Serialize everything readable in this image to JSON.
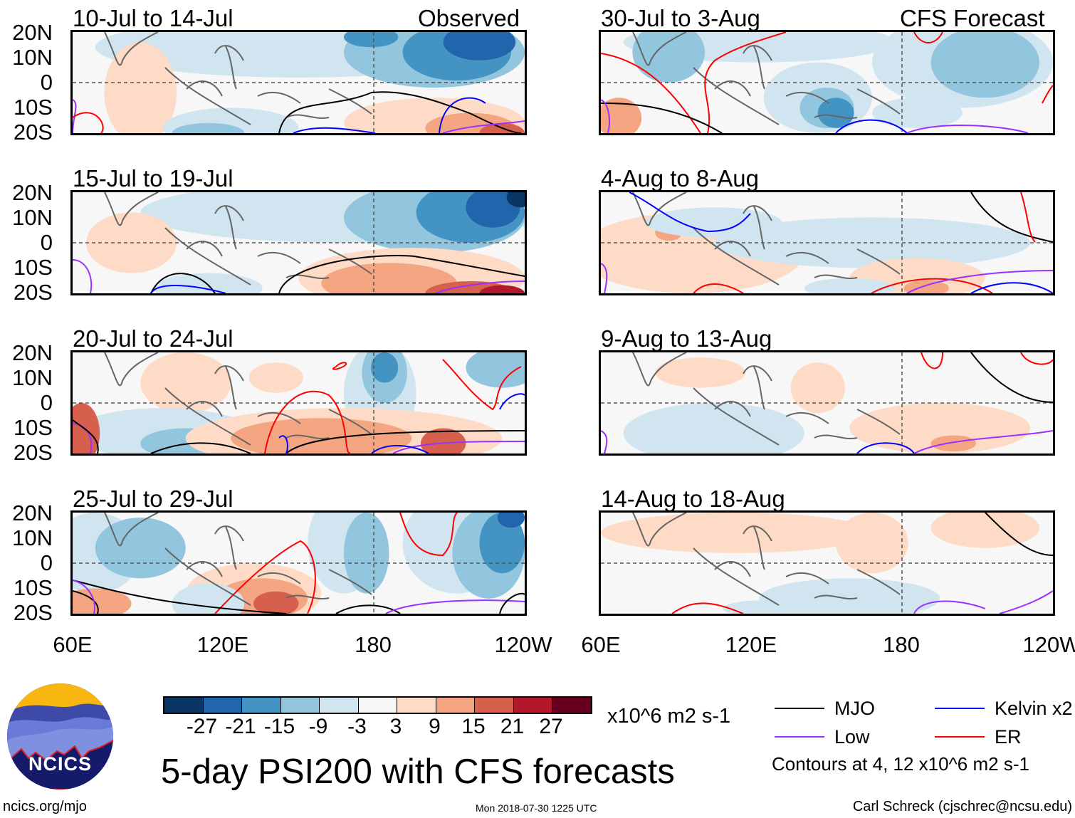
{
  "headers": {
    "observed": "Observed",
    "forecast": "CFS Forecast"
  },
  "panels": [
    {
      "title": "10-Jul to 14-Jul",
      "column": "observed"
    },
    {
      "title": "15-Jul to 19-Jul",
      "column": "observed"
    },
    {
      "title": "20-Jul to 24-Jul",
      "column": "observed"
    },
    {
      "title": "25-Jul to 29-Jul",
      "column": "observed"
    },
    {
      "title": "30-Jul to 3-Aug",
      "column": "forecast"
    },
    {
      "title": "4-Aug to 8-Aug",
      "column": "forecast"
    },
    {
      "title": "9-Aug to 13-Aug",
      "column": "forecast"
    },
    {
      "title": "14-Aug to 18-Aug",
      "column": "forecast"
    }
  ],
  "lat_labels": [
    "20N",
    "10N",
    "0",
    "10S",
    "20S"
  ],
  "lon_labels": [
    "60E",
    "120E",
    "180",
    "120W"
  ],
  "colorbar": {
    "levels": [
      "-27",
      "-21",
      "-15",
      "-9",
      "-3",
      "3",
      "9",
      "15",
      "21",
      "27"
    ],
    "colors": [
      "#0a3565",
      "#2166ac",
      "#4393c3",
      "#92c5de",
      "#d1e5f0",
      "#f7f7f7",
      "#fddbc7",
      "#f4a582",
      "#d6604d",
      "#b2182b",
      "#67001f"
    ],
    "units": "x10^6 m2 s-1"
  },
  "title": "5-day PSI200 with CFS forecasts",
  "legend": {
    "items": [
      {
        "label": "MJO",
        "color": "#000000"
      },
      {
        "label": "Kelvin x2",
        "color": "#0000ff"
      },
      {
        "label": "Low",
        "color": "#9b30ff"
      },
      {
        "label": "ER",
        "color": "#ff0000"
      }
    ],
    "note": "Contours at 4, 12 x10^6 m2 s-1"
  },
  "logo": {
    "text": "NCICS"
  },
  "footer": {
    "url": "ncics.org/mjo",
    "timestamp": "Mon 2018-07-30 1225 UTC",
    "credit": "Carl Schreck (cjschrec@ncsu.edu)"
  }
}
